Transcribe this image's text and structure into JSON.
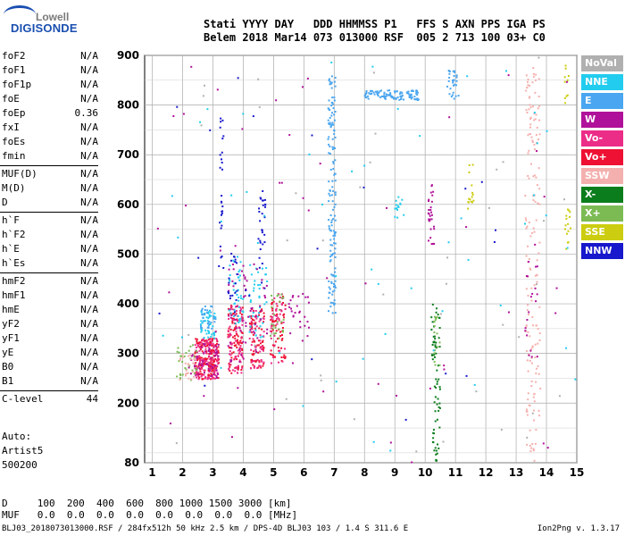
{
  "logo": {
    "line1": "Lowell",
    "line2": "DIGISONDE"
  },
  "header": {
    "line1": "Stati YYYY DAY   DDD HHMMSS P1   FFS S AXN PPS IGA PS",
    "line2": "Belem 2018 Mar14 073 013000 RSF  005 2 713 100 03+ C0"
  },
  "params": [
    [
      {
        "n": "foF2",
        "v": "N/A"
      },
      {
        "n": "foF1",
        "v": "N/A"
      },
      {
        "n": "foF1p",
        "v": "N/A"
      },
      {
        "n": "foE",
        "v": "N/A"
      },
      {
        "n": "foEp",
        "v": "0.36"
      },
      {
        "n": "fxI",
        "v": "N/A"
      },
      {
        "n": "foEs",
        "v": "N/A"
      },
      {
        "n": "fmin",
        "v": "N/A"
      }
    ],
    [
      {
        "n": "MUF(D)",
        "v": "N/A"
      },
      {
        "n": "M(D)",
        "v": "N/A"
      },
      {
        "n": "D",
        "v": "N/A"
      }
    ],
    [
      {
        "n": "h`F",
        "v": "N/A"
      },
      {
        "n": "h`F2",
        "v": "N/A"
      },
      {
        "n": "h`E",
        "v": "N/A"
      },
      {
        "n": "h`Es",
        "v": "N/A"
      }
    ],
    [
      {
        "n": "hmF2",
        "v": "N/A"
      },
      {
        "n": "hmF1",
        "v": "N/A"
      },
      {
        "n": "hmE",
        "v": "N/A"
      },
      {
        "n": "yF2",
        "v": "N/A"
      },
      {
        "n": "yF1",
        "v": "N/A"
      },
      {
        "n": "yE",
        "v": "N/A"
      },
      {
        "n": "B0",
        "v": "N/A"
      },
      {
        "n": "B1",
        "v": "N/A"
      }
    ],
    [
      {
        "n": "C-level",
        "v": "44"
      }
    ]
  ],
  "autoscaling": {
    "l1": "Auto:",
    "l2": "Artist5",
    "l3": "500200"
  },
  "footer": {
    "d_row": "D     100  200  400  600  800 1000 1500 3000 [km]",
    "muf_row": "MUF   0.0  0.0  0.0  0.0  0.0  0.0  0.0  0.0 [MHz]",
    "file_info": "BLJ03_2018073013000.RSF / 284fx512h 50 kHz 2.5 km / DPS-4D BLJ03 103 / 1.4 S 311.6 E",
    "version": "Ion2Png v. 1.3.17"
  },
  "legend": [
    {
      "label": "NoVal",
      "color": "#b0b0b0"
    },
    {
      "label": "NNE",
      "color": "#22ccee"
    },
    {
      "label": "E",
      "color": "#4aa6f0"
    },
    {
      "label": "W",
      "color": "#b0119a"
    },
    {
      "label": "Vo-",
      "color": "#ec2d88"
    },
    {
      "label": "Vo+",
      "color": "#ee1133"
    },
    {
      "label": "SSW",
      "color": "#f4b0ae"
    },
    {
      "label": "X-",
      "color": "#0c7d1c"
    },
    {
      "label": "X+",
      "color": "#7cbb54"
    },
    {
      "label": "SSE",
      "color": "#cccc10"
    },
    {
      "label": "NNW",
      "color": "#1818cc"
    }
  ],
  "chart_data": {
    "type": "scatter",
    "xlim": [
      0.75,
      15
    ],
    "ylim": [
      80,
      900
    ],
    "x_ticks": [
      "1",
      "2",
      "3",
      "4",
      "5",
      "6",
      "7",
      "8",
      "9",
      "10",
      "11",
      "12",
      "13",
      "14",
      "15"
    ],
    "y_ticks": [
      "80",
      "200",
      "300",
      "400",
      "500",
      "600",
      "700",
      "800",
      "900"
    ],
    "grid": true,
    "clusters": [
      {
        "series": "Vo+",
        "xr": [
          2.4,
          3.2
        ],
        "yr": [
          248,
          330
        ],
        "n": 170
      },
      {
        "series": "Vo-",
        "xr": [
          2.4,
          3.2
        ],
        "yr": [
          248,
          330
        ],
        "n": 110
      },
      {
        "series": "W",
        "xr": [
          2.2,
          3.2
        ],
        "yr": [
          250,
          320
        ],
        "n": 60
      },
      {
        "series": "NNE",
        "xr": [
          2.6,
          3.1
        ],
        "yr": [
          330,
          390
        ],
        "n": 45
      },
      {
        "series": "E",
        "xr": [
          2.6,
          3.1
        ],
        "yr": [
          350,
          400
        ],
        "n": 30
      },
      {
        "series": "X+",
        "xr": [
          1.8,
          2.5
        ],
        "yr": [
          245,
          320
        ],
        "n": 30
      },
      {
        "series": "SSW",
        "xr": [
          1.9,
          2.4
        ],
        "yr": [
          245,
          300
        ],
        "n": 25
      },
      {
        "series": "Vo+",
        "xr": [
          3.5,
          4.0
        ],
        "yr": [
          260,
          400
        ],
        "n": 90
      },
      {
        "series": "Vo-",
        "xr": [
          3.5,
          4.0
        ],
        "yr": [
          260,
          400
        ],
        "n": 60
      },
      {
        "series": "W",
        "xr": [
          3.5,
          4.1
        ],
        "yr": [
          280,
          480
        ],
        "n": 40
      },
      {
        "series": "NNE",
        "xr": [
          3.5,
          4.0
        ],
        "yr": [
          360,
          500
        ],
        "n": 40
      },
      {
        "series": "NNW",
        "xr": [
          3.5,
          3.8
        ],
        "yr": [
          380,
          520
        ],
        "n": 20
      },
      {
        "series": "NNW",
        "xr": [
          3.2,
          3.35
        ],
        "yr": [
          470,
          800
        ],
        "n": 28
      },
      {
        "series": "Vo+",
        "xr": [
          4.2,
          4.7
        ],
        "yr": [
          270,
          390
        ],
        "n": 70
      },
      {
        "series": "Vo-",
        "xr": [
          4.2,
          4.7
        ],
        "yr": [
          270,
          390
        ],
        "n": 45
      },
      {
        "series": "NNE",
        "xr": [
          4.2,
          4.8
        ],
        "yr": [
          330,
          480
        ],
        "n": 40
      },
      {
        "series": "NNW",
        "xr": [
          4.5,
          4.75
        ],
        "yr": [
          420,
          640
        ],
        "n": 30
      },
      {
        "series": "W",
        "xr": [
          4.0,
          4.8
        ],
        "yr": [
          300,
          480
        ],
        "n": 30
      },
      {
        "series": "Vo+",
        "xr": [
          4.9,
          5.4
        ],
        "yr": [
          280,
          420
        ],
        "n": 60
      },
      {
        "series": "Vo-",
        "xr": [
          4.9,
          5.4
        ],
        "yr": [
          280,
          420
        ],
        "n": 40
      },
      {
        "series": "X+",
        "xr": [
          4.9,
          5.4
        ],
        "yr": [
          330,
          420
        ],
        "n": 25
      },
      {
        "series": "W",
        "xr": [
          5.5,
          6.2
        ],
        "yr": [
          320,
          420
        ],
        "n": 25
      },
      {
        "series": "E",
        "xr": [
          6.8,
          7.05
        ],
        "yr": [
          380,
          860
        ],
        "n": 150
      },
      {
        "series": "E",
        "xr": [
          8.0,
          9.8
        ],
        "yr": [
          810,
          830
        ],
        "n": 110
      },
      {
        "series": "E",
        "xr": [
          10.7,
          11.1
        ],
        "yr": [
          810,
          870
        ],
        "n": 30
      },
      {
        "series": "NNE",
        "xr": [
          9.0,
          9.3
        ],
        "yr": [
          570,
          620
        ],
        "n": 15
      },
      {
        "series": "W",
        "xr": [
          10.1,
          10.3
        ],
        "yr": [
          520,
          640
        ],
        "n": 30
      },
      {
        "series": "X-",
        "xr": [
          10.2,
          10.5
        ],
        "yr": [
          80,
          400
        ],
        "n": 70
      },
      {
        "series": "X+",
        "xr": [
          10.3,
          10.5
        ],
        "yr": [
          270,
          380
        ],
        "n": 15
      },
      {
        "series": "SSE",
        "xr": [
          11.4,
          11.6
        ],
        "yr": [
          590,
          680
        ],
        "n": 15
      },
      {
        "series": "SSW",
        "xr": [
          13.3,
          13.8
        ],
        "yr": [
          80,
          880
        ],
        "n": 160
      },
      {
        "series": "W",
        "xr": [
          13.3,
          13.7
        ],
        "yr": [
          280,
          520
        ],
        "n": 20
      },
      {
        "series": "SSE",
        "xr": [
          14.6,
          14.8
        ],
        "yr": [
          510,
          590
        ],
        "n": 15
      },
      {
        "series": "SSE",
        "xr": [
          14.6,
          14.75
        ],
        "yr": [
          800,
          880
        ],
        "n": 10
      },
      {
        "series": "NoVal",
        "xr": [
          1,
          15
        ],
        "yr": [
          80,
          900
        ],
        "n": 40
      },
      {
        "series": "NNE",
        "xr": [
          1,
          15
        ],
        "yr": [
          80,
          900
        ],
        "n": 50
      },
      {
        "series": "W",
        "xr": [
          1,
          15
        ],
        "yr": [
          80,
          900
        ],
        "n": 50
      },
      {
        "series": "NNW",
        "xr": [
          1,
          15
        ],
        "yr": [
          80,
          900
        ],
        "n": 20
      }
    ]
  }
}
